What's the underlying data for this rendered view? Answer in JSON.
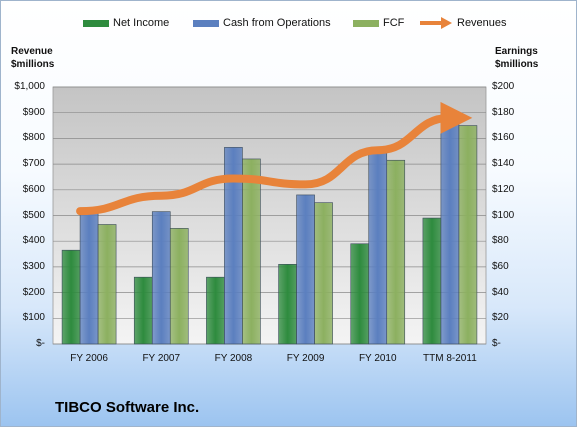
{
  "chart_data": {
    "type": "bar",
    "title": "TIBCO Software Inc.",
    "categories": [
      "FY 2006",
      "FY 2007",
      "FY 2008",
      "FY 2009",
      "FY 2010",
      "TTM 8-2011"
    ],
    "left_axis": {
      "label_line1": "Revenue",
      "label_line2": "$millions",
      "ylim": [
        0,
        1000
      ],
      "ticks": [
        "$-",
        "$100",
        "$200",
        "$300",
        "$400",
        "$500",
        "$600",
        "$700",
        "$800",
        "$900",
        "$1,000"
      ]
    },
    "right_axis": {
      "label_line1": "Earnings",
      "label_line2": "$millions",
      "ylim": [
        0,
        200
      ],
      "ticks": [
        "$-",
        "$20",
        "$40",
        "$60",
        "$80",
        "$100",
        "$120",
        "$140",
        "$160",
        "$180",
        "$200"
      ]
    },
    "series": [
      {
        "name": "Net Income",
        "type": "bar",
        "axis": "right",
        "color": "#2e8b3e",
        "values": [
          73,
          52,
          52,
          62,
          78,
          98
        ]
      },
      {
        "name": "Cash from Operations",
        "type": "bar",
        "axis": "right",
        "color": "#5b7fbf",
        "values": [
          106,
          103,
          153,
          116,
          150,
          180
        ]
      },
      {
        "name": "FCF",
        "type": "bar",
        "axis": "right",
        "color": "#8cb060",
        "values": [
          93,
          90,
          144,
          110,
          143,
          170
        ]
      },
      {
        "name": "Revenues",
        "type": "line",
        "axis": "left",
        "color": "#e8833a",
        "values": [
          517,
          577,
          644,
          621,
          754,
          880
        ]
      }
    ],
    "grid": true,
    "legend_position": "top"
  }
}
